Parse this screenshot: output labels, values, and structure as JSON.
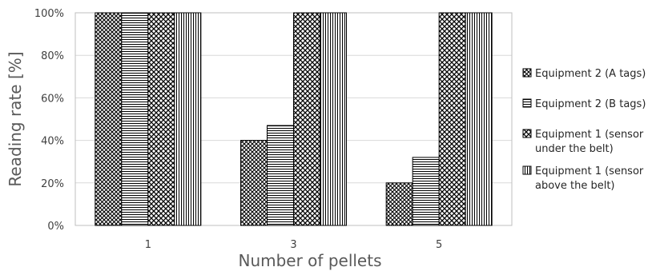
{
  "chart_data": {
    "type": "bar",
    "title": "",
    "xlabel": "Number of pellets",
    "ylabel": "Reading rate [%]",
    "categories": [
      "1",
      "3",
      "5"
    ],
    "ylim": [
      0,
      100
    ],
    "yticks": [
      "0%",
      "20%",
      "40%",
      "60%",
      "80%",
      "100%"
    ],
    "grid": true,
    "legend_position": "right",
    "series": [
      {
        "name_lines": [
          "Equipment 2 (A tags)"
        ],
        "values": [
          100,
          40,
          20
        ],
        "pattern": "crosshatch"
      },
      {
        "name_lines": [
          "Equipment 2 (B tags)"
        ],
        "values": [
          100,
          47,
          32
        ],
        "pattern": "horizontal-lines"
      },
      {
        "name_lines": [
          "Equipment 1 (sensor",
          "under the belt)"
        ],
        "values": [
          100,
          100,
          100
        ],
        "pattern": "diagonal-crosshatch"
      },
      {
        "name_lines": [
          "Equipment 1 (sensor",
          "above the belt)"
        ],
        "values": [
          100,
          100,
          100
        ],
        "pattern": "vertical-lines"
      }
    ],
    "colors": {
      "stroke": "#000000",
      "fill": "#ffffff",
      "grid": "#d9d9d9",
      "axis": "#bfbfbf"
    }
  }
}
